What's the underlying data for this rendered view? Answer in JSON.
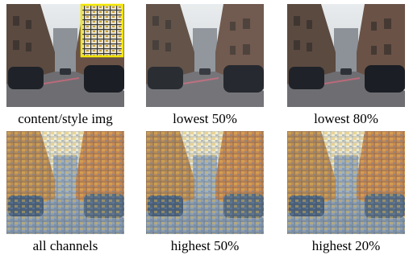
{
  "panels": [
    {
      "caption": "content/style img"
    },
    {
      "caption": "lowest 50%"
    },
    {
      "caption": "lowest 80%"
    },
    {
      "caption": "all channels"
    },
    {
      "caption": "highest 50%"
    },
    {
      "caption": "highest 20%"
    }
  ]
}
